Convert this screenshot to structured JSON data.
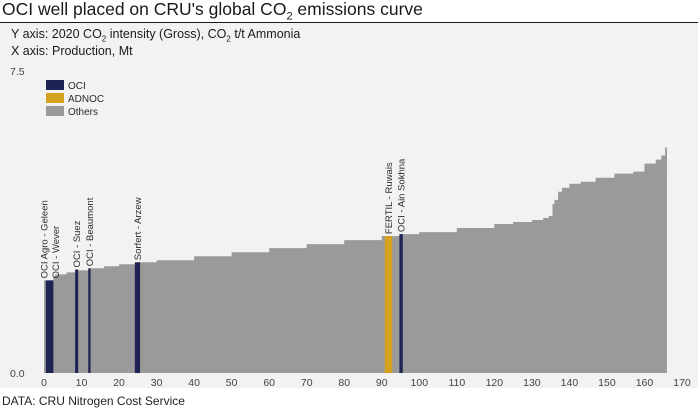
{
  "header": {
    "title_pre": "OCI well placed on CRU's global CO",
    "title_sub": "2",
    "title_post": " emissions curve"
  },
  "axis_desc": {
    "y_pre": "Y axis: 2020 CO",
    "y_sub": "2",
    "y_mid": " intensity (Gross), CO",
    "y_sub2": "2",
    "y_post": " t/t Ammonia",
    "x_text": "X axis: Production, Mt"
  },
  "source": "DATA: CRU Nitrogen Cost Service",
  "colors": {
    "OCI": "#1f2353",
    "ADNOC": "#d4a21f",
    "Others": "#9a9a9a",
    "panel": "#f2f2f2"
  },
  "chart_data": {
    "type": "area",
    "title": "OCI well placed on CRU's global CO2 emissions curve",
    "ylabel": "2020 CO2 intensity (Gross), CO2 t/t Ammonia",
    "xlabel": "Production, Mt",
    "xlim": [
      0,
      170
    ],
    "ylim": [
      0.0,
      7.5
    ],
    "x_ticks": [
      0,
      10,
      20,
      30,
      40,
      50,
      60,
      70,
      80,
      90,
      100,
      110,
      120,
      130,
      140,
      150,
      160,
      170
    ],
    "y_ticks": [
      0.0,
      7.5
    ],
    "y_tick_labels": [
      "0.0",
      "7.5"
    ],
    "grid": false,
    "legend": {
      "placement": "top-left",
      "entries": [
        {
          "name": "OCI",
          "color": "#1f2353"
        },
        {
          "name": "ADNOC",
          "color": "#d4a21f"
        },
        {
          "name": "Others",
          "color": "#9a9a9a"
        }
      ]
    },
    "curve": {
      "name": "Others",
      "x": [
        0,
        0.5,
        2.5,
        3,
        6,
        9,
        12,
        16,
        20,
        25,
        30,
        40,
        50,
        60,
        70,
        80,
        90,
        95,
        100,
        110,
        120,
        125,
        130,
        133,
        134.5,
        135.5,
        136,
        137,
        138,
        140,
        143,
        147,
        152,
        157,
        160,
        163,
        164.5,
        165.5,
        166
      ],
      "y": [
        2.3,
        2.3,
        2.4,
        2.45,
        2.5,
        2.55,
        2.6,
        2.65,
        2.7,
        2.75,
        2.8,
        2.9,
        3.0,
        3.1,
        3.2,
        3.3,
        3.4,
        3.45,
        3.5,
        3.6,
        3.7,
        3.75,
        3.8,
        3.85,
        3.9,
        4.2,
        4.3,
        4.5,
        4.6,
        4.7,
        4.75,
        4.85,
        4.95,
        5.0,
        5.2,
        5.3,
        5.4,
        5.6,
        5.6
      ]
    },
    "highlights": [
      {
        "label": "OCI Agro - Geleen",
        "company": "OCI",
        "x_start": 0.5,
        "x_end": 1.6,
        "value": 2.3
      },
      {
        "label": "OCI - Wever",
        "company": "OCI",
        "x_start": 1.6,
        "x_end": 2.5,
        "value": 2.3
      },
      {
        "label": "OCI - Suez",
        "company": "OCI",
        "x_start": 8.3,
        "x_end": 9.1,
        "value": 2.57
      },
      {
        "label": "OCI - Beaumont",
        "company": "OCI",
        "x_start": 11.8,
        "x_end": 12.4,
        "value": 2.6
      },
      {
        "label": "Sorfert - Arzew",
        "company": "OCI",
        "x_start": 24.2,
        "x_end": 25.6,
        "value": 2.75
      },
      {
        "label": "FERTIL - Ruwais",
        "company": "ADNOC",
        "x_start": 90.8,
        "x_end": 92.8,
        "value": 3.4
      },
      {
        "label": "OCI - Ain Sokhna",
        "company": "OCI",
        "x_start": 94.7,
        "x_end": 95.6,
        "value": 3.45
      }
    ]
  }
}
